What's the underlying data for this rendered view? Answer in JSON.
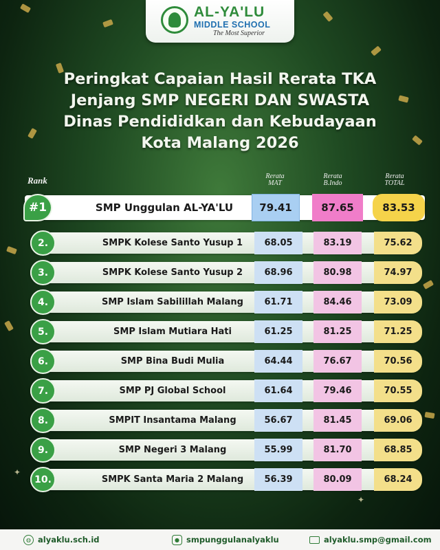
{
  "logo": {
    "name": "AL-YA'LU",
    "subtitle": "MIDDLE SCHOOL",
    "tagline": "The Most Superior"
  },
  "title": {
    "line1": "Peringkat Capaian Hasil Rerata TKA",
    "line2": "Jenjang SMP NEGERI DAN SWASTA",
    "line3": "Dinas Pendididkan dan Kebudayaan",
    "line4": "Kota Malang 2026"
  },
  "headers": {
    "rank": "Rank",
    "mat_top": "Rerata",
    "mat_bottom": "MAT",
    "indo_top": "Rerata",
    "indo_bottom": "B.Indo",
    "total_top": "Rerata",
    "total_bottom": "TOTAL"
  },
  "rows": [
    {
      "rank": "#1",
      "school": "SMP Unggulan AL-YA'LU",
      "mat": "79.41",
      "indo": "87.65",
      "total": "83.53"
    },
    {
      "rank": "2.",
      "school": "SMPK Kolese Santo Yusup 1",
      "mat": "68.05",
      "indo": "83.19",
      "total": "75.62"
    },
    {
      "rank": "3.",
      "school": "SMPK Kolese Santo Yusup 2",
      "mat": "68.96",
      "indo": "80.98",
      "total": "74.97"
    },
    {
      "rank": "4.",
      "school": "SMP Islam Sabilillah Malang",
      "mat": "61.71",
      "indo": "84.46",
      "total": "73.09"
    },
    {
      "rank": "5.",
      "school": "SMP Islam Mutiara Hati",
      "mat": "61.25",
      "indo": "81.25",
      "total": "71.25"
    },
    {
      "rank": "6.",
      "school": "SMP Bina Budi Mulia",
      "mat": "64.44",
      "indo": "76.67",
      "total": "70.56"
    },
    {
      "rank": "7.",
      "school": "SMP PJ Global School",
      "mat": "61.64",
      "indo": "79.46",
      "total": "70.55"
    },
    {
      "rank": "8.",
      "school": "SMPIT Insantama Malang",
      "mat": "56.67",
      "indo": "81.45",
      "total": "69.06"
    },
    {
      "rank": "9.",
      "school": "SMP Negeri 3 Malang",
      "mat": "55.99",
      "indo": "81.70",
      "total": "68.85"
    },
    {
      "rank": "10.",
      "school": "SMPK Santa Maria 2 Malang",
      "mat": "56.39",
      "indo": "80.09",
      "total": "68.24"
    }
  ],
  "footer": {
    "website": "alyaklu.sch.id",
    "instagram": "smpunggulanalyaklu",
    "email": "alyaklu.smp@gmail.com"
  },
  "colors": {
    "mat": "#cde0f4",
    "indo": "#f2c4e4",
    "total": "#f3df8a",
    "rank_badge": "#3aa046",
    "brand_green": "#2e8b3a"
  },
  "icons": [
    "globe-icon",
    "instagram-icon",
    "mail-icon"
  ]
}
